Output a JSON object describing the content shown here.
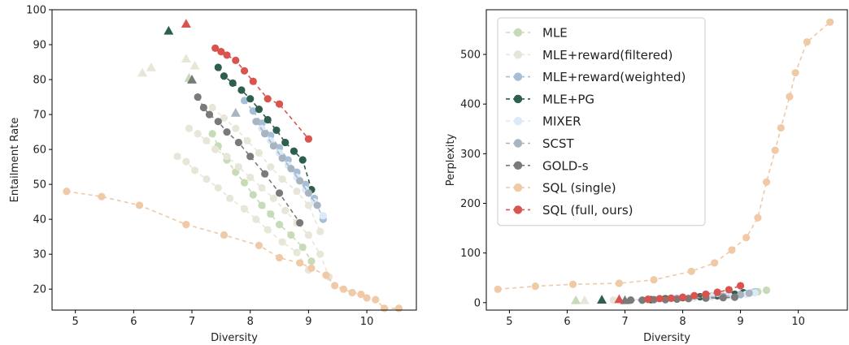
{
  "chart_data": [
    {
      "type": "scatter",
      "xlabel": "Diversity",
      "ylabel": "Entailment Rate",
      "xlim": [
        4.6,
        10.85
      ],
      "ylim": [
        14,
        100
      ],
      "xticks": [
        5,
        6,
        7,
        8,
        9,
        10
      ],
      "yticks": [
        20,
        30,
        40,
        50,
        60,
        70,
        80,
        90,
        100
      ],
      "series": [
        {
          "name": "MLE",
          "color": "#c7dbb8",
          "marker": "circle",
          "dashed": true,
          "x": [
            7.35,
            7.45,
            7.6,
            7.75,
            7.9,
            8.05,
            8.2,
            8.35,
            8.5,
            8.7,
            8.9,
            9.05
          ],
          "y": [
            64.5,
            61,
            57,
            53.5,
            50.5,
            47,
            44,
            41.5,
            38.5,
            35.5,
            32,
            28
          ],
          "triangles": [
            {
              "x": 6.95,
              "y": 80.5
            }
          ]
        },
        {
          "name": "MLE+reward(filtered)",
          "color": "#e8e6d8",
          "marker": "circle",
          "dashed": true,
          "groups": [
            {
              "x": [
                6.95,
                7.1,
                7.25,
                7.4,
                7.6,
                7.8,
                8.0,
                8.2,
                8.4,
                8.6,
                8.8,
                9.0,
                9.2,
                9.35
              ],
              "y": [
                66,
                64.5,
                62.5,
                60,
                58,
                55,
                52,
                49,
                46,
                42.5,
                39,
                35.5,
                30,
                23.5
              ]
            },
            {
              "x": [
                6.75,
                6.9,
                7.05,
                7.25,
                7.45,
                7.65,
                7.9,
                8.1,
                8.3,
                8.55,
                8.8,
                9.0
              ],
              "y": [
                58,
                56.5,
                54,
                51.5,
                49,
                46,
                43,
                40,
                37,
                33.5,
                30.5,
                25.5
              ]
            },
            {
              "x": [
                7.35,
                7.55,
                7.75,
                7.95,
                8.15,
                8.35,
                8.55,
                8.8,
                9.0,
                9.2
              ],
              "y": [
                72,
                69,
                66,
                62.5,
                59,
                55,
                51.5,
                48,
                44,
                36.5
              ]
            }
          ],
          "triangles": [
            {
              "x": 6.15,
              "y": 82
            },
            {
              "x": 6.3,
              "y": 83.5
            },
            {
              "x": 6.9,
              "y": 86
            },
            {
              "x": 7.05,
              "y": 84
            }
          ]
        },
        {
          "name": "MLE+reward(weighted)",
          "color": "#a7bfd6",
          "marker": "circle",
          "dashed": true,
          "x": [
            7.9,
            8.05,
            8.2,
            8.35,
            8.5,
            8.65,
            8.8,
            8.95,
            9.1,
            9.25
          ],
          "y": [
            74,
            71,
            67.5,
            64,
            60.5,
            57,
            53.5,
            50,
            46,
            40
          ]
        },
        {
          "name": "MLE+PG",
          "color": "#2e5e4e",
          "marker": "circle",
          "dashed": true,
          "x": [
            7.45,
            7.55,
            7.7,
            7.85,
            8.0,
            8.15,
            8.3,
            8.45,
            8.6,
            8.75,
            8.9,
            9.05
          ],
          "y": [
            83.5,
            81,
            79,
            77,
            74.5,
            71.5,
            68.5,
            65.5,
            62,
            59.5,
            57,
            48.5
          ],
          "triangles": [
            {
              "x": 6.6,
              "y": 94
            }
          ]
        },
        {
          "name": "MIXER",
          "color": "#dbe9f8",
          "marker": "circle",
          "dashed": true,
          "x": [
            8.2,
            8.35,
            8.5,
            8.65,
            8.8,
            8.95,
            9.1,
            9.25
          ],
          "y": [
            66,
            62.5,
            59,
            55.5,
            52,
            48.5,
            45,
            41
          ]
        },
        {
          "name": "SCST",
          "color": "#a8b5c0",
          "marker": "circle",
          "dashed": true,
          "x": [
            8.1,
            8.25,
            8.4,
            8.55,
            8.7,
            8.85,
            9.0,
            9.15
          ],
          "y": [
            68,
            64.5,
            61,
            57.5,
            54.5,
            51,
            47.5,
            44
          ],
          "triangles": [
            {
              "x": 7.75,
              "y": 70.5
            }
          ]
        },
        {
          "name": "GOLD-s",
          "color": "#7a7a7a",
          "marker": "circle",
          "dashed": true,
          "x": [
            7.1,
            7.2,
            7.3,
            7.45,
            7.6,
            7.8,
            8.0,
            8.25,
            8.5,
            8.85
          ],
          "y": [
            75,
            72,
            70,
            68,
            65,
            62,
            58,
            53,
            47.5,
            39
          ],
          "triangles": [
            {
              "x": 7.0,
              "y": 80
            }
          ]
        },
        {
          "name": "SQL (single)",
          "color": "#f0c9a6",
          "marker": "circle",
          "dashed": true,
          "x": [
            4.85,
            5.45,
            6.1,
            6.9,
            7.55,
            8.15,
            8.5,
            8.85,
            9.05,
            9.3,
            9.45,
            9.6,
            9.75,
            9.9,
            10.0,
            10.15,
            10.3,
            10.55
          ],
          "y": [
            48,
            46.5,
            44,
            38.5,
            35.5,
            32.5,
            29,
            27.5,
            26,
            24,
            21,
            20,
            19,
            18.5,
            17.5,
            17,
            14.5,
            14.5
          ]
        },
        {
          "name": "SQL (full, ours)",
          "color": "#d9534f",
          "marker": "circle",
          "dashed": true,
          "x": [
            7.4,
            7.5,
            7.6,
            7.75,
            7.9,
            8.05,
            8.3,
            8.5,
            9.0
          ],
          "y": [
            89,
            88,
            87,
            85.5,
            82.5,
            79.5,
            74.5,
            73,
            63
          ],
          "triangles": [
            {
              "x": 6.9,
              "y": 96
            }
          ]
        }
      ]
    },
    {
      "type": "scatter",
      "xlabel": "Diversity",
      "ylabel": "Perplexity",
      "xlim": [
        4.6,
        10.85
      ],
      "ylim": [
        -15,
        590
      ],
      "xticks": [
        5,
        6,
        7,
        8,
        9,
        10
      ],
      "yticks": [
        0,
        100,
        200,
        300,
        400,
        500
      ],
      "legend": "top-left",
      "series": [
        {
          "name": "MLE",
          "color": "#c7dbb8",
          "marker": "circle",
          "dashed": true,
          "x": [
            7.4,
            7.8,
            8.2,
            8.6,
            9.0,
            9.3,
            9.45
          ],
          "y": [
            6,
            8,
            10,
            13,
            17,
            22,
            25
          ],
          "triangles": [
            {
              "x": 6.15,
              "y": 5
            }
          ]
        },
        {
          "name": "MLE+reward(filtered)",
          "color": "#e8e6d8",
          "marker": "circle",
          "dashed": true,
          "x": [
            6.8,
            7.1,
            7.4,
            7.7,
            8.0,
            8.3,
            8.6,
            8.9,
            9.2
          ],
          "y": [
            5,
            6,
            7,
            8,
            10,
            12,
            14,
            17,
            21
          ],
          "triangles": [
            {
              "x": 6.3,
              "y": 5
            }
          ]
        },
        {
          "name": "MLE+reward(weighted)",
          "color": "#a7bfd6",
          "marker": "circle",
          "dashed": true,
          "x": [
            7.9,
            8.2,
            8.5,
            8.8,
            9.1,
            9.25
          ],
          "y": [
            9,
            11,
            13,
            15,
            18,
            22
          ]
        },
        {
          "name": "MLE+PG",
          "color": "#2e5e4e",
          "marker": "circle",
          "dashed": true,
          "x": [
            7.45,
            7.7,
            8.0,
            8.3,
            8.6,
            8.9,
            9.05
          ],
          "y": [
            6,
            8,
            10,
            12,
            14,
            17,
            20
          ],
          "triangles": [
            {
              "x": 6.6,
              "y": 6
            }
          ]
        },
        {
          "name": "MIXER",
          "color": "#dbe9f8",
          "marker": "circle",
          "dashed": true,
          "x": [
            8.2,
            8.5,
            8.8,
            9.1,
            9.25
          ],
          "y": [
            10,
            12,
            14,
            17,
            20
          ]
        },
        {
          "name": "SCST",
          "color": "#a8b5c0",
          "marker": "circle",
          "dashed": true,
          "x": [
            8.1,
            8.4,
            8.7,
            9.0,
            9.15
          ],
          "y": [
            9,
            11,
            13,
            16,
            19
          ]
        },
        {
          "name": "GOLD-s",
          "color": "#7a7a7a",
          "marker": "circle",
          "dashed": true,
          "x": [
            7.1,
            7.3,
            7.5,
            7.7,
            7.9,
            8.1,
            8.4,
            8.7,
            8.9
          ],
          "y": [
            5,
            5,
            6,
            6,
            7,
            8,
            9,
            10,
            11
          ],
          "triangles": [
            {
              "x": 7.0,
              "y": 5
            }
          ]
        },
        {
          "name": "SQL (single)",
          "color": "#f0c9a6",
          "marker": "circle",
          "dashed": true,
          "x": [
            4.8,
            5.45,
            6.1,
            6.9,
            7.5,
            8.15,
            8.55,
            8.85,
            9.1,
            9.3,
            9.45,
            9.6,
            9.7,
            9.85,
            9.95,
            10.15,
            10.55
          ],
          "y": [
            27,
            33,
            37,
            39,
            46,
            63,
            80,
            106,
            131,
            171,
            243,
            307,
            352,
            415,
            463,
            525,
            565
          ]
        },
        {
          "name": "SQL (full, ours)",
          "color": "#d9534f",
          "marker": "circle",
          "dashed": true,
          "x": [
            7.4,
            7.6,
            7.8,
            8.0,
            8.2,
            8.4,
            8.6,
            8.8,
            9.0
          ],
          "y": [
            7,
            8,
            9,
            11,
            14,
            17,
            21,
            26,
            34
          ],
          "triangles": [
            {
              "x": 6.9,
              "y": 7
            }
          ]
        }
      ]
    }
  ]
}
